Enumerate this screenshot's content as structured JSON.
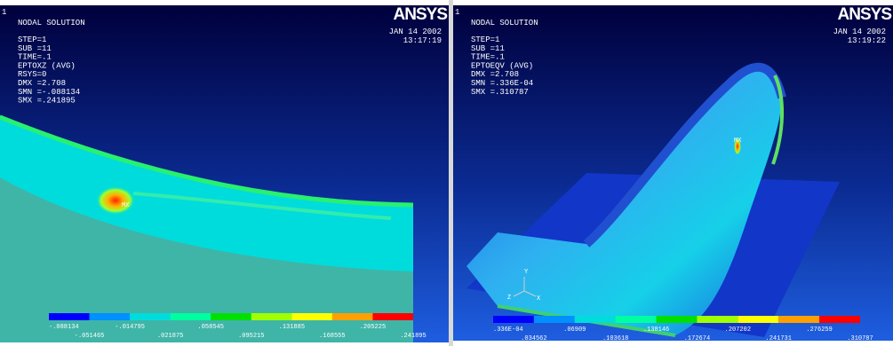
{
  "panels": [
    {
      "window_number": "1",
      "header": [
        "NODAL SOLUTION",
        "STEP=1",
        "SUB =11",
        "TIME=.1",
        "EPTOXZ    (AVG)",
        "RSYS=0",
        "DMX =2.708",
        "SMN =-.088134",
        "SMX =.241895"
      ],
      "brand": "ANSYS",
      "date": "JAN 14 2002",
      "time": "13:17:19",
      "max_marker": "MX",
      "legend": [
        "-.088134",
        "-.051465",
        "-.014795",
        ".021875",
        ".058545",
        ".095215",
        ".131885",
        ".168555",
        ".205225",
        ".241895"
      ]
    },
    {
      "window_number": "1",
      "header": [
        "NODAL SOLUTION",
        "STEP=1",
        "SUB =11",
        "TIME=.1",
        "EPTOEQV   (AVG)",
        "DMX =2.708",
        "SMN =.336E-04",
        "SMX =.310787"
      ],
      "brand": "ANSYS",
      "date": "JAN 14 2002",
      "time": "13:19:22",
      "max_marker": "MX",
      "legend": [
        ".336E-04",
        ".034562",
        ".06909",
        ".103618",
        ".138146",
        ".172674",
        ".207202",
        ".241731",
        ".276259",
        ".310787"
      ],
      "triad_labels": [
        "Y",
        "Z",
        "X"
      ]
    }
  ]
}
